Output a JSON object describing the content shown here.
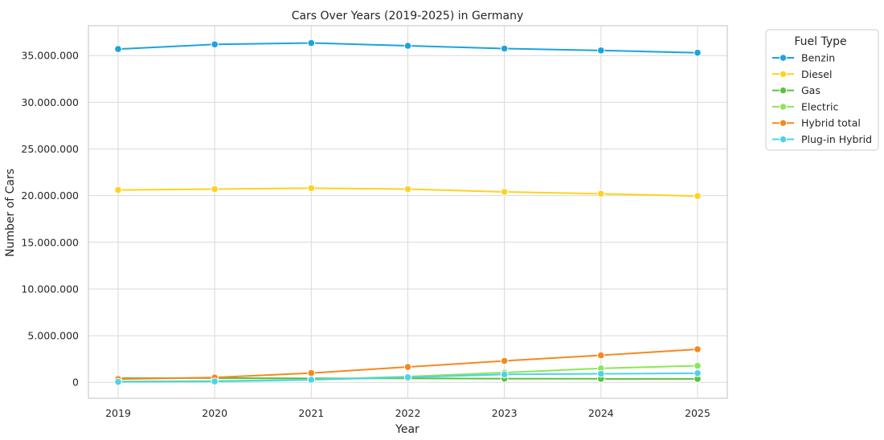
{
  "chart_data": {
    "type": "line",
    "title": "Cars Over Years (2019-2025) in Germany",
    "xlabel": "Year",
    "ylabel": "Number of Cars",
    "x": [
      2019,
      2020,
      2021,
      2022,
      2023,
      2024,
      2025
    ],
    "x_ticks": [
      "2019",
      "2020",
      "2021",
      "2022",
      "2023",
      "2024",
      "2025"
    ],
    "ylim": [
      -1700000,
      38200000
    ],
    "y_ticks": [
      0,
      5000000,
      10000000,
      15000000,
      20000000,
      25000000,
      30000000,
      35000000
    ],
    "y_tick_labels": [
      "0",
      "5.000.000",
      "10.000.000",
      "15.000.000",
      "20.000.000",
      "25.000.000",
      "30.000.000",
      "35.000.000"
    ],
    "grid": true,
    "legend": {
      "title": "Fuel Type",
      "placement": "outside-top-right"
    },
    "series": [
      {
        "name": "Benzin",
        "color": "#1ba3dc",
        "values": [
          35700000,
          36200000,
          36350000,
          36050000,
          35750000,
          35550000,
          35300000
        ]
      },
      {
        "name": "Diesel",
        "color": "#ffd21f",
        "values": [
          20600000,
          20700000,
          20800000,
          20700000,
          20400000,
          20200000,
          19950000
        ]
      },
      {
        "name": "Gas",
        "color": "#5cc13c",
        "values": [
          450000,
          460000,
          430000,
          430000,
          400000,
          380000,
          370000
        ]
      },
      {
        "name": "Electric",
        "color": "#8ee556",
        "values": [
          100000,
          140000,
          300000,
          620000,
          1050000,
          1500000,
          1780000
        ]
      },
      {
        "name": "Hybrid total",
        "color": "#f5881f",
        "values": [
          350000,
          520000,
          1000000,
          1650000,
          2300000,
          2900000,
          3550000
        ]
      },
      {
        "name": "Plug-in Hybrid",
        "color": "#4bd4e8",
        "values": [
          60000,
          100000,
          280000,
          550000,
          850000,
          920000,
          980000
        ]
      }
    ]
  }
}
